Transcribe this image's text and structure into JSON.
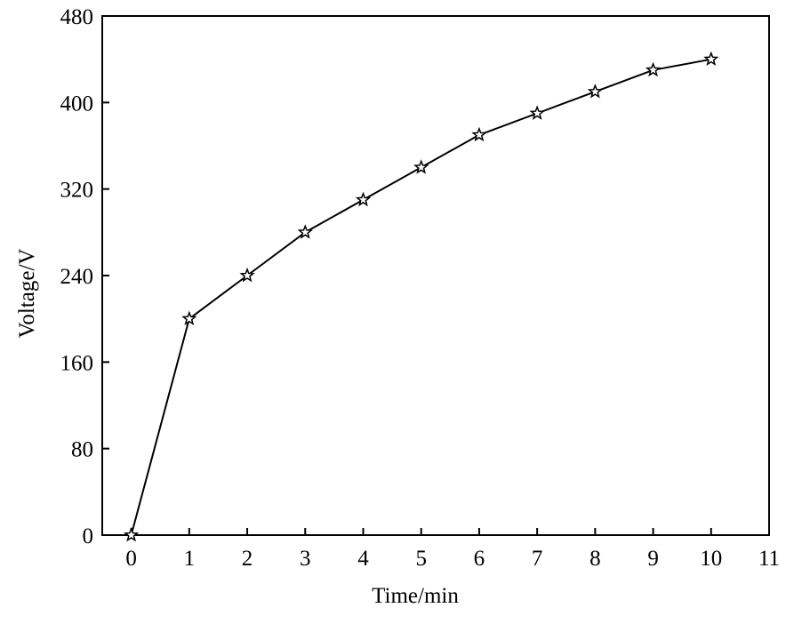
{
  "chart_data": {
    "type": "line",
    "title": "",
    "xlabel": "Time/min",
    "ylabel": "Voltage/V",
    "xlim": [
      -0.5,
      11
    ],
    "ylim": [
      0,
      480
    ],
    "xticks": [
      0,
      1,
      2,
      3,
      4,
      5,
      6,
      7,
      8,
      9,
      10,
      11
    ],
    "yticks": [
      0,
      80,
      160,
      240,
      320,
      400,
      480
    ],
    "grid": false,
    "marker": "star",
    "colors": {
      "line": "#000000",
      "axes": "#000000",
      "background": "#ffffff"
    },
    "series": [
      {
        "x": [
          0,
          1,
          2,
          3,
          4,
          5,
          6,
          7,
          8,
          9,
          10
        ],
        "y": [
          0,
          200,
          240,
          280,
          310,
          340,
          370,
          390,
          410,
          430,
          440
        ]
      }
    ]
  }
}
